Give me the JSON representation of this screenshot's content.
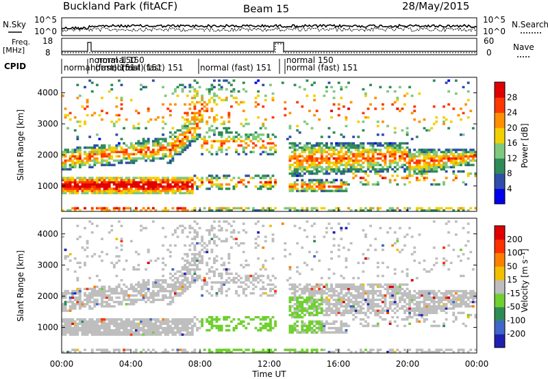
{
  "header": {
    "site": "Buckland Park (fitACF)",
    "beam": "Beam 15",
    "date": "28/May/2015"
  },
  "top_panel": {
    "left_label": "N.Sky",
    "right_label": "N.Search",
    "left_ticks": [
      "10^5",
      "10^0"
    ],
    "right_ticks": [
      "10^5",
      "10^0"
    ]
  },
  "freq_panel": {
    "left_label_1": "Freq.",
    "left_label_2": "[MHz]",
    "left_ticks": [
      "18",
      "8"
    ],
    "right_label": "Nave",
    "right_ticks": [
      "60",
      "0"
    ]
  },
  "cpid": {
    "label": "CPID",
    "texts": [
      "normal (fast) 151",
      "normal 150",
      "normal (fast) 151",
      "normal 150",
      "normal (fast) 151",
      "normal 150",
      "normal (fast) 151",
      "normal 150",
      "normal (fast) 151"
    ]
  },
  "chart_data": [
    {
      "type": "heatmap",
      "title": "",
      "xlabel": "",
      "ylabel": "Slant Range [km]",
      "y_ticks": [
        "1000",
        "2000",
        "3000",
        "4000"
      ],
      "ylim": [
        180,
        4500
      ],
      "colorbar": {
        "label": "Power [dB]",
        "ticks": [
          "4",
          "8",
          "12",
          "16",
          "20",
          "24",
          "28"
        ],
        "range": [
          0,
          32
        ],
        "colors": [
          "#0000ee",
          "#2e4ea8",
          "#2e8b57",
          "#7fc97f",
          "#f2d000",
          "#ff9000",
          "#ff3800",
          "#e00000"
        ]
      }
    },
    {
      "type": "heatmap",
      "title": "",
      "xlabel": "Time UT",
      "ylabel": "Slant Range [km]",
      "y_ticks": [
        "1000",
        "2000",
        "3000",
        "4000"
      ],
      "ylim": [
        180,
        4500
      ],
      "x_ticks": [
        "00:00",
        "04:00",
        "08:00",
        "12:00",
        "16:00",
        "20:00",
        "00:00"
      ],
      "colorbar": {
        "label": "Velocity [m s⁻¹]",
        "ticks": [
          "200",
          "100",
          "50",
          "15",
          "-15",
          "-50",
          "-100",
          "-200"
        ],
        "range": [
          -250,
          250
        ],
        "colors": [
          "#2020b0",
          "#3f66c8",
          "#2e8b57",
          "#6fd030",
          "#bebebe",
          "#f2c000",
          "#ff8000",
          "#ff3000",
          "#e00000"
        ]
      }
    }
  ]
}
